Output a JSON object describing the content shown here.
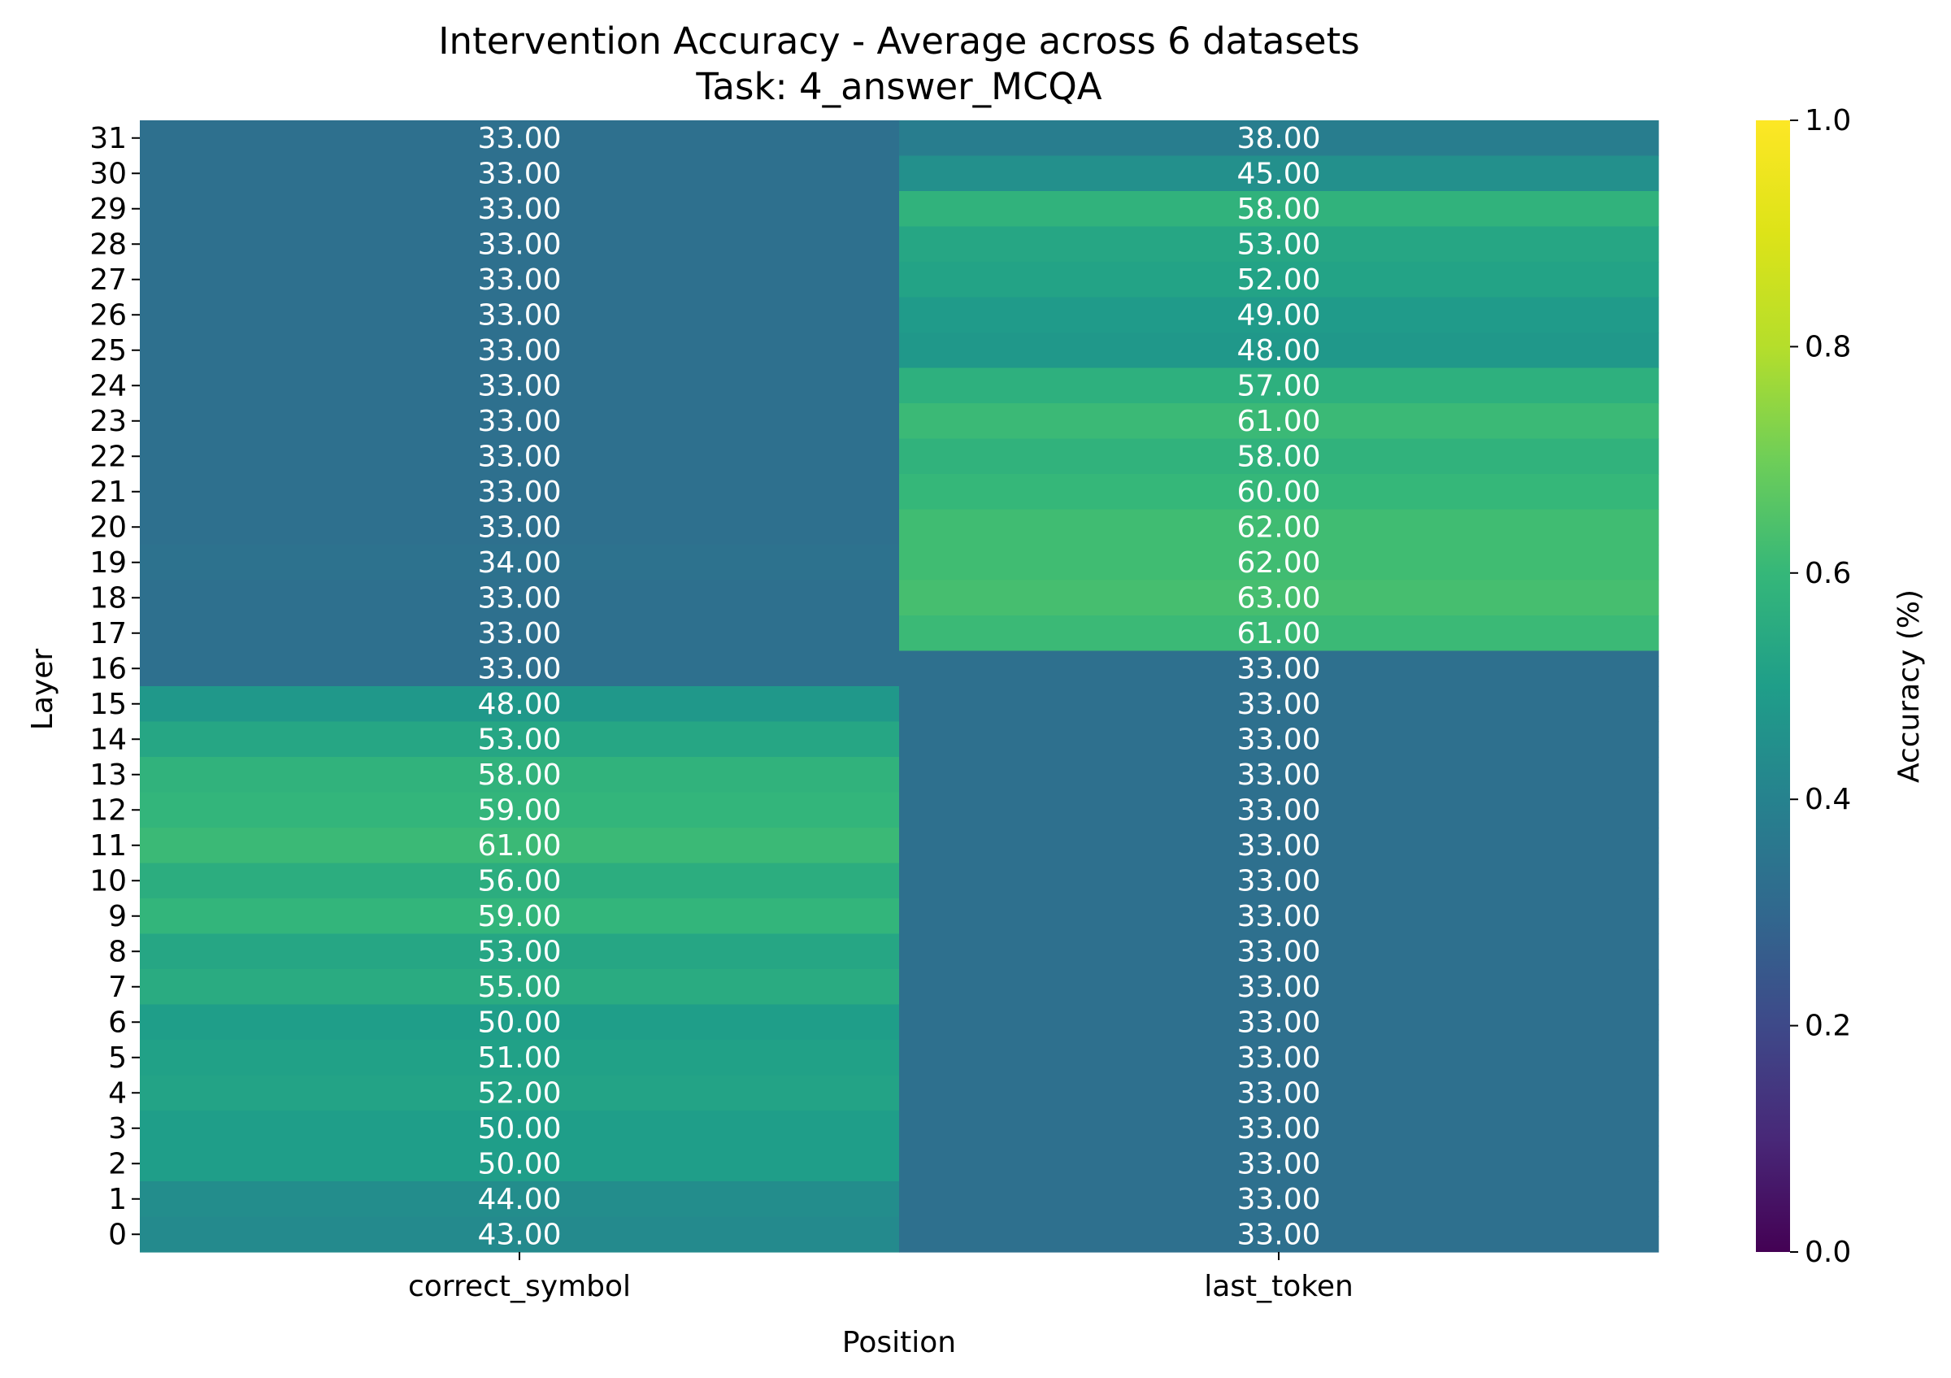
{
  "chart_data": {
    "type": "heatmap",
    "title": "Intervention Accuracy - Average across 6 datasets",
    "subtitle": "Task: 4_answer_MCQA",
    "xlabel": "Position",
    "ylabel": "Layer",
    "columns": [
      "correct_symbol",
      "last_token"
    ],
    "rows": [
      "31",
      "30",
      "29",
      "28",
      "27",
      "26",
      "25",
      "24",
      "23",
      "22",
      "21",
      "20",
      "19",
      "18",
      "17",
      "16",
      "15",
      "14",
      "13",
      "12",
      "11",
      "10",
      "9",
      "8",
      "7",
      "6",
      "5",
      "4",
      "3",
      "2",
      "1",
      "0"
    ],
    "values": [
      [
        33.0,
        38.0
      ],
      [
        33.0,
        45.0
      ],
      [
        33.0,
        58.0
      ],
      [
        33.0,
        53.0
      ],
      [
        33.0,
        52.0
      ],
      [
        33.0,
        49.0
      ],
      [
        33.0,
        48.0
      ],
      [
        33.0,
        57.0
      ],
      [
        33.0,
        61.0
      ],
      [
        33.0,
        58.0
      ],
      [
        33.0,
        60.0
      ],
      [
        33.0,
        62.0
      ],
      [
        34.0,
        62.0
      ],
      [
        33.0,
        63.0
      ],
      [
        33.0,
        61.0
      ],
      [
        33.0,
        33.0
      ],
      [
        48.0,
        33.0
      ],
      [
        53.0,
        33.0
      ],
      [
        58.0,
        33.0
      ],
      [
        59.0,
        33.0
      ],
      [
        61.0,
        33.0
      ],
      [
        56.0,
        33.0
      ],
      [
        59.0,
        33.0
      ],
      [
        53.0,
        33.0
      ],
      [
        55.0,
        33.0
      ],
      [
        50.0,
        33.0
      ],
      [
        51.0,
        33.0
      ],
      [
        52.0,
        33.0
      ],
      [
        50.0,
        33.0
      ],
      [
        50.0,
        33.0
      ],
      [
        44.0,
        33.0
      ],
      [
        43.0,
        33.0
      ]
    ],
    "colormap": "viridis",
    "colorbar": {
      "label": "Accuracy (%)",
      "range": [
        0.0,
        1.0
      ],
      "ticks": [
        "0.0",
        "0.2",
        "0.4",
        "0.6",
        "0.8",
        "1.0"
      ]
    }
  }
}
